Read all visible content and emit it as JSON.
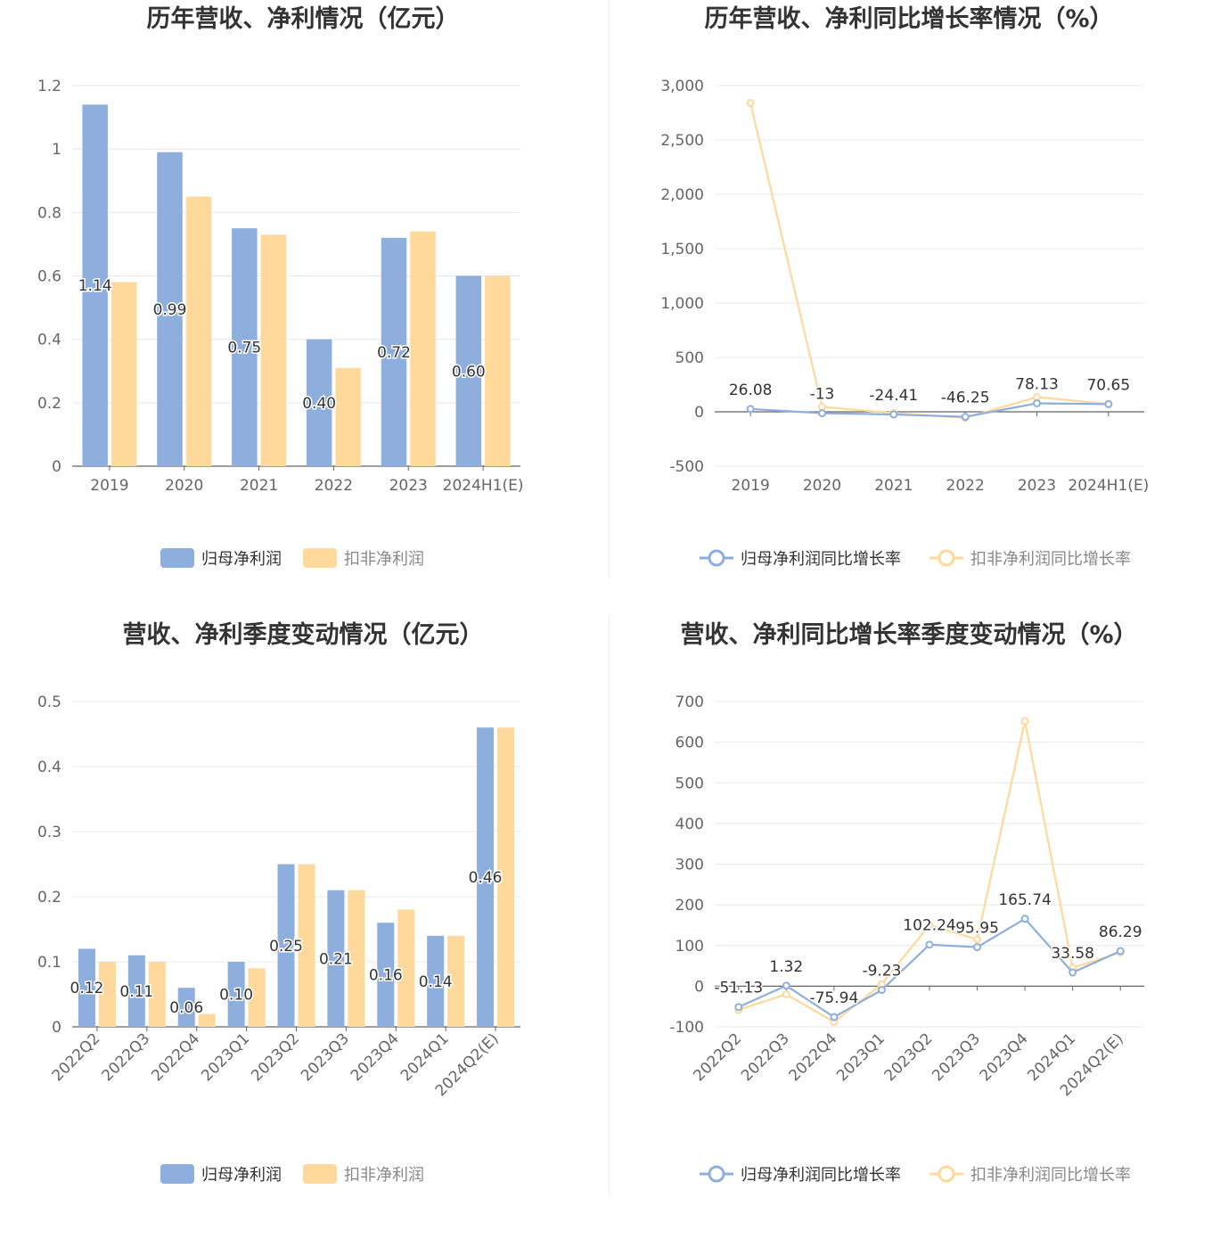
{
  "colors": {
    "primary": "#8eaede",
    "secondary": "#fed99b",
    "grid": "#e5e8f2",
    "axis": "#666666"
  },
  "chart_data": [
    {
      "type": "bar",
      "title": "历年营收、净利情况（亿元）",
      "categories": [
        "2019",
        "2020",
        "2021",
        "2022",
        "2023",
        "2024H1(E)"
      ],
      "ylim": [
        0,
        1.2
      ],
      "yticks": [
        "0",
        "0.2",
        "0.4",
        "0.6",
        "0.8",
        "1",
        "1.2"
      ],
      "series": [
        {
          "name": "归母净利润",
          "values": [
            1.14,
            0.99,
            0.75,
            0.4,
            0.72,
            0.6
          ],
          "labels": [
            "1.14",
            "0.99",
            "0.75",
            "0.40",
            "0.72",
            "0.60"
          ]
        },
        {
          "name": "扣非净利润",
          "values": [
            0.58,
            0.85,
            0.73,
            0.31,
            0.74,
            0.6
          ]
        }
      ],
      "legend": "bottom"
    },
    {
      "type": "line",
      "title": "历年营收、净利同比增长率情况（%）",
      "categories": [
        "2019",
        "2020",
        "2021",
        "2022",
        "2023",
        "2024H1(E)"
      ],
      "ylim": [
        -500,
        3000
      ],
      "yticks": [
        "-500",
        "0",
        "500",
        "1,000",
        "1,500",
        "2,000",
        "2,500",
        "3,000"
      ],
      "series": [
        {
          "name": "归母净利润同比增长率",
          "values": [
            26.08,
            -13,
            -24.41,
            -46.25,
            78.13,
            70.65
          ],
          "labels": [
            "26.08",
            "-13",
            "-24.41",
            "-46.25",
            "78.13",
            "70.65"
          ]
        },
        {
          "name": "扣非净利润同比增长率",
          "values": [
            2840,
            45,
            -12,
            -55,
            135,
            72
          ]
        }
      ],
      "legend": "bottom"
    },
    {
      "type": "bar",
      "title": "营收、净利季度变动情况（亿元）",
      "categories": [
        "2022Q2",
        "2022Q3",
        "2022Q4",
        "2023Q1",
        "2023Q2",
        "2023Q3",
        "2023Q4",
        "2024Q1",
        "2024Q2(E)"
      ],
      "ylim": [
        0,
        0.5
      ],
      "yticks": [
        "0",
        "0.1",
        "0.2",
        "0.3",
        "0.4",
        "0.5"
      ],
      "series": [
        {
          "name": "归母净利润",
          "values": [
            0.12,
            0.11,
            0.06,
            0.1,
            0.25,
            0.21,
            0.16,
            0.14,
            0.46
          ],
          "labels": [
            "0.12",
            "0.11",
            "0.06",
            "0.10",
            "0.25",
            "0.21",
            "0.16",
            "0.14",
            "0.46"
          ]
        },
        {
          "name": "扣非净利润",
          "values": [
            0.1,
            0.1,
            0.02,
            0.09,
            0.25,
            0.21,
            0.18,
            0.14,
            0.46
          ]
        }
      ],
      "legend": "bottom"
    },
    {
      "type": "line",
      "title": "营收、净利同比增长率季度变动情况（%）",
      "categories": [
        "2022Q2",
        "2022Q3",
        "2022Q4",
        "2023Q1",
        "2023Q2",
        "2023Q3",
        "2023Q4",
        "2024Q1",
        "2024Q2(E)"
      ],
      "ylim": [
        -100,
        700
      ],
      "yticks": [
        "-100",
        "0",
        "100",
        "200",
        "300",
        "400",
        "500",
        "600",
        "700"
      ],
      "series": [
        {
          "name": "归母净利润同比增长率",
          "values": [
            -51.13,
            1.32,
            -75.94,
            -9.23,
            102.24,
            95.95,
            165.74,
            33.58,
            86.29
          ],
          "labels": [
            "-51.13",
            "1.32",
            "-75.94",
            "-9.23",
            "102.24",
            "95.95",
            "165.74",
            "33.58",
            "86.29"
          ]
        },
        {
          "name": "扣非净利润同比增长率",
          "values": [
            -58,
            -20,
            -88,
            5,
            150,
            115,
            652,
            45,
            83
          ]
        }
      ],
      "legend": "bottom"
    }
  ]
}
